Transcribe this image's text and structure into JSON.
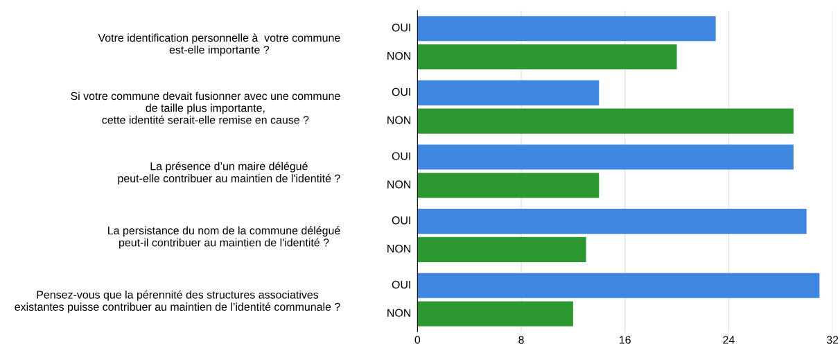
{
  "chart_data": {
    "type": "bar",
    "orientation": "horizontal",
    "categories": [
      "Votre identification personnelle à  votre commune\nest-elle importante ?",
      "Si votre commune devait fusionner avec une commune\nde taille plus importante,\ncette identité serait-elle remise en cause ?",
      "La présence d’un maire délégué\npeut-elle contribuer au maintien de l'identité ?",
      "La persistance du nom de la commune délégué\npeut-il contribuer au maintien de l'identité ?",
      "Pensez-vous que la pérennité des structures associatives\nexistantes puisse contribuer au maintien de l’identité communale ?"
    ],
    "series": [
      {
        "name": "OUI",
        "color": "#3f86e0",
        "values": [
          23,
          14,
          29,
          30,
          31
        ]
      },
      {
        "name": "NON",
        "color": "#2a972f",
        "values": [
          20,
          29,
          14,
          13,
          12
        ]
      }
    ],
    "xlim": [
      0,
      32
    ],
    "xticks": [
      0,
      8,
      16,
      24,
      32
    ],
    "grid": "x",
    "legend": false
  }
}
